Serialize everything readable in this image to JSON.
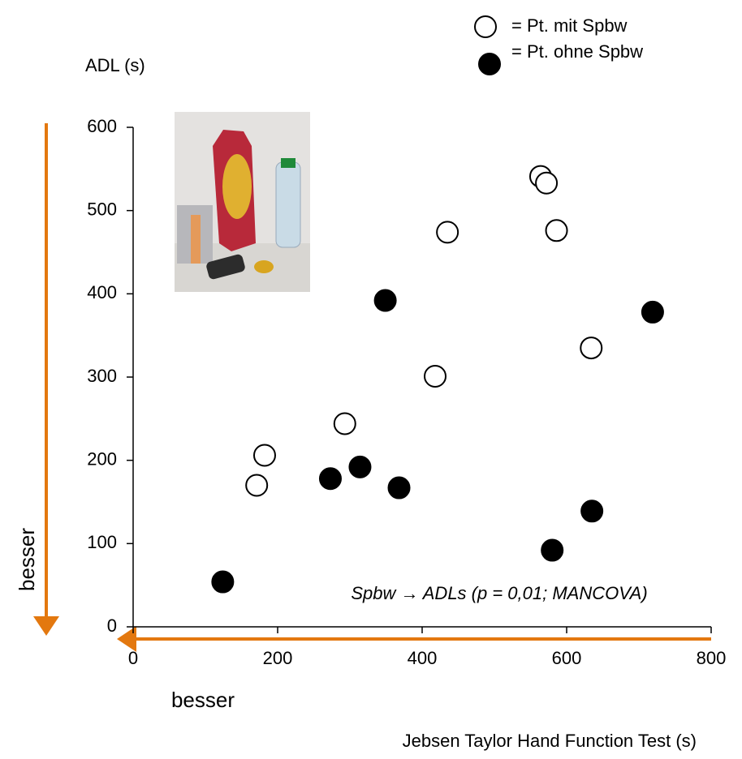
{
  "chart_data": {
    "type": "scatter",
    "y_label": "ADL (s)",
    "x_label": "Jebsen Taylor Hand Function Test (s)",
    "annotation": "Spbw → ADLs (p = 0,01; MANCOVA)",
    "y_direction_label": "besser",
    "x_direction_label": "besser",
    "xlim": [
      0,
      800
    ],
    "xticks": [
      0,
      200,
      400,
      600,
      800
    ],
    "ylim": [
      0,
      600
    ],
    "yticks": [
      0,
      100,
      200,
      300,
      400,
      500,
      600
    ],
    "series": [
      {
        "name": "= Pt. mit Spbw",
        "color": "#ffffff",
        "x": [
          564,
          572,
          586,
          435,
          634,
          418,
          293,
          182,
          171
        ],
        "values": [
          541,
          533,
          476,
          474,
          335,
          301,
          244,
          206,
          170
        ]
      },
      {
        "name": "= Pt. ohne Spbw",
        "color": "#000000",
        "x": [
          349,
          719,
          314,
          273,
          368,
          635,
          580,
          124
        ],
        "values": [
          392,
          378,
          192,
          178,
          167,
          139,
          92,
          54
        ]
      }
    ]
  }
}
